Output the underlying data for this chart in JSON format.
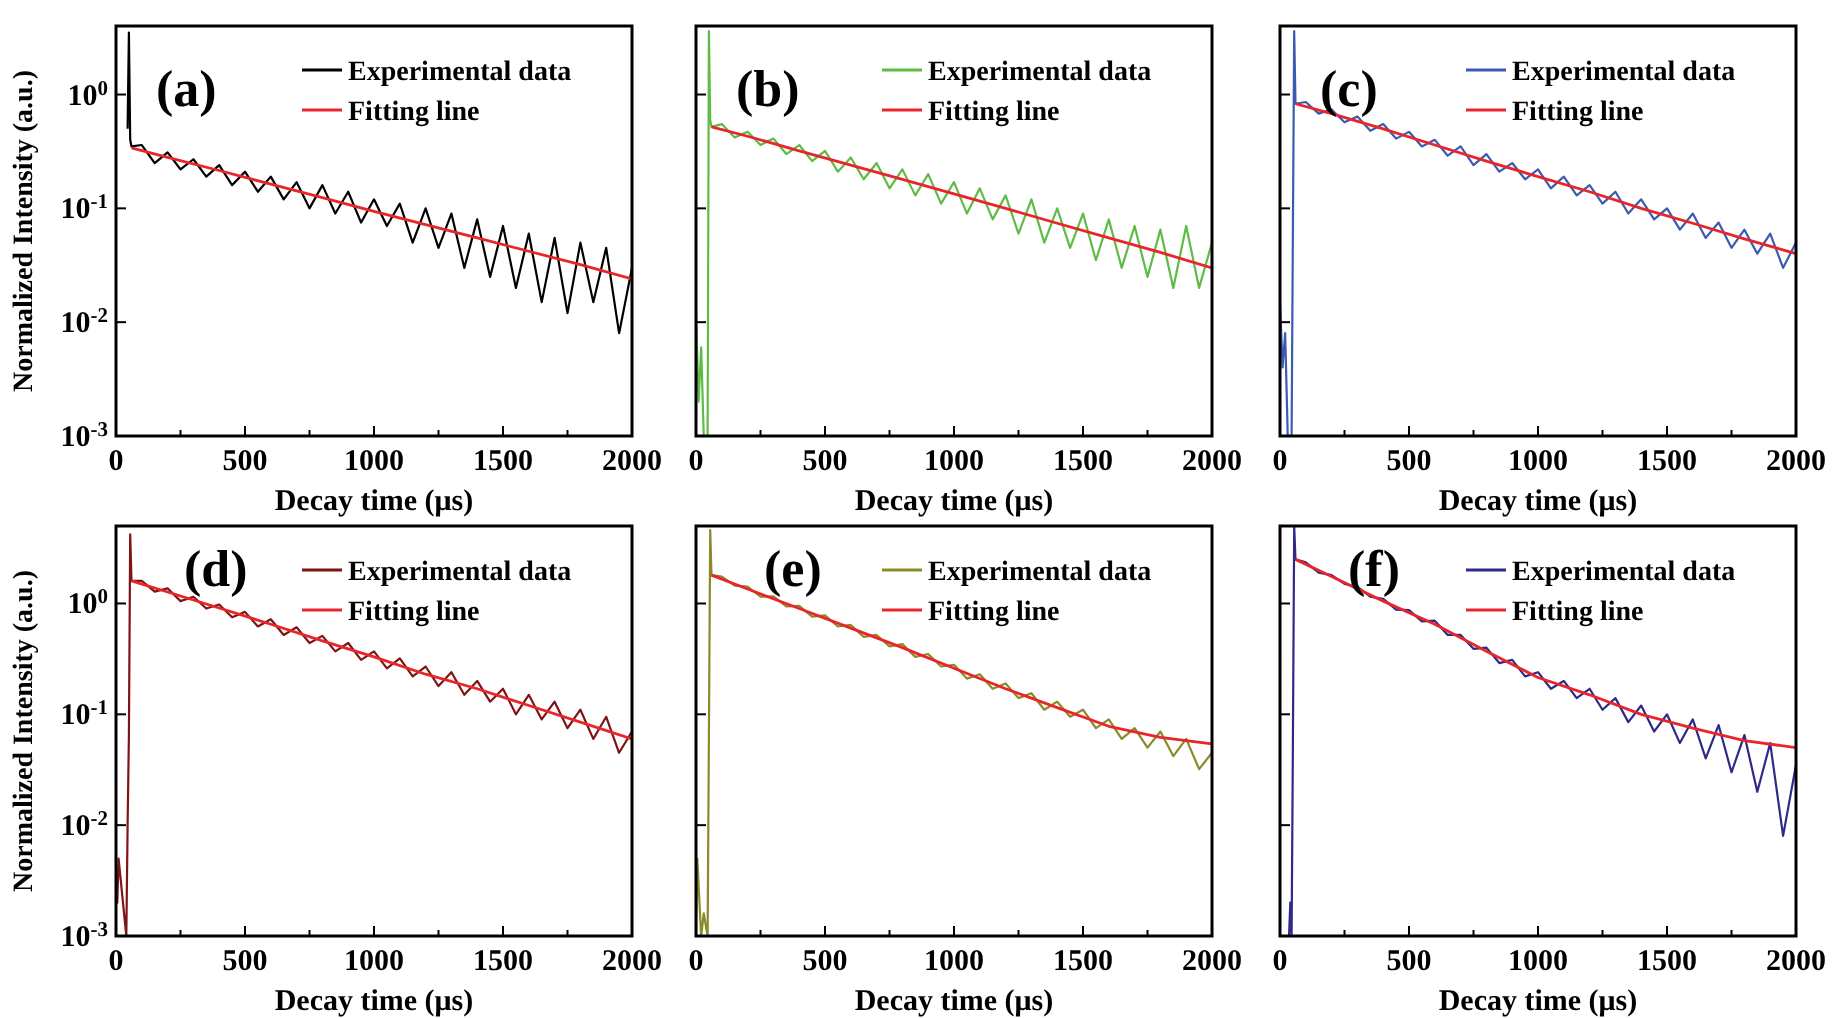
{
  "chart_data": [
    {
      "type": "line",
      "annotations": [
        "(a)"
      ],
      "xlabel": "Decay time (μs)",
      "ylabel": "Normalized Intensity (a.u.)",
      "log": "y",
      "legend": "top right",
      "xlim": [
        0,
        2000
      ],
      "ylim": [
        0.001,
        4
      ],
      "xticks": [
        0,
        {
          "value": 250,
          "label": null
        },
        500,
        {
          "value": 750,
          "label": null
        },
        1000,
        {
          "value": 1250,
          "label": null
        },
        1500,
        {
          "value": 1750,
          "label": null
        },
        2000
      ],
      "yticks": [
        {
          "value": 0.001,
          "label": "10$^{-3}$"
        },
        {
          "value": 0.01,
          "label": "10$^{-2}$"
        },
        {
          "value": 0.1,
          "label": "10$^{-1}$"
        },
        {
          "value": 1,
          "label": "10$^{0}$"
        }
      ],
      "series": [
        {
          "name": "Experimental data",
          "color": "#000000",
          "x": [
            45,
            50,
            55,
            60,
            100,
            150,
            200,
            250,
            300,
            350,
            400,
            450,
            500,
            550,
            600,
            650,
            700,
            750,
            800,
            850,
            900,
            950,
            1000,
            1050,
            1100,
            1150,
            1200,
            1250,
            1300,
            1350,
            1400,
            1450,
            1500,
            1550,
            1600,
            1650,
            1700,
            1750,
            1800,
            1850,
            1900,
            1950,
            2000
          ],
          "values": [
            0.5,
            3.5,
            0.4,
            0.35,
            0.36,
            0.25,
            0.31,
            0.22,
            0.27,
            0.19,
            0.24,
            0.16,
            0.21,
            0.14,
            0.19,
            0.12,
            0.17,
            0.1,
            0.16,
            0.09,
            0.14,
            0.075,
            0.12,
            0.07,
            0.11,
            0.05,
            0.1,
            0.045,
            0.09,
            0.03,
            0.08,
            0.025,
            0.07,
            0.02,
            0.06,
            0.015,
            0.055,
            0.012,
            0.05,
            0.015,
            0.045,
            0.008,
            0.03
          ]
        },
        {
          "name": "Fitting line",
          "color": "#e8262a",
          "x": [
            60,
            200,
            400,
            600,
            800,
            1000,
            1200,
            1400,
            1600,
            1800,
            2000
          ],
          "values": [
            0.34,
            0.28,
            0.215,
            0.163,
            0.124,
            0.094,
            0.072,
            0.055,
            0.042,
            0.032,
            0.024
          ]
        }
      ]
    },
    {
      "type": "line",
      "annotations": [
        "(b)"
      ],
      "xlabel": "Decay time (μs)",
      "log": "y",
      "legend": "top right",
      "tick_labels": "x",
      "xlim": [
        0,
        2000
      ],
      "ylim": [
        0.001,
        4
      ],
      "xticks": [
        0,
        {
          "value": 250,
          "label": null
        },
        500,
        {
          "value": 750,
          "label": null
        },
        1000,
        {
          "value": 1250,
          "label": null
        },
        1500,
        {
          "value": 1750,
          "label": null
        },
        2000
      ],
      "yticks": [
        {
          "value": 0.001,
          "label": null
        },
        {
          "value": 0.01,
          "label": null
        },
        {
          "value": 0.1,
          "label": null
        },
        {
          "value": 1,
          "label": null
        }
      ],
      "series": [
        {
          "name": "Experimental data",
          "color": "#5dbb46",
          "x": [
            0,
            10,
            20,
            30,
            45,
            50,
            55,
            60,
            100,
            150,
            200,
            250,
            300,
            350,
            400,
            450,
            500,
            550,
            600,
            650,
            700,
            750,
            800,
            850,
            900,
            950,
            1000,
            1050,
            1100,
            1150,
            1200,
            1250,
            1300,
            1350,
            1400,
            1450,
            1500,
            1550,
            1600,
            1650,
            1700,
            1750,
            1800,
            1850,
            1900,
            1950,
            2000
          ],
          "values": [
            0.012,
            0.002,
            0.006,
            0.001,
            0.001,
            3.6,
            0.6,
            0.52,
            0.55,
            0.42,
            0.47,
            0.36,
            0.41,
            0.3,
            0.36,
            0.26,
            0.32,
            0.21,
            0.28,
            0.18,
            0.25,
            0.15,
            0.22,
            0.13,
            0.2,
            0.11,
            0.17,
            0.09,
            0.15,
            0.08,
            0.13,
            0.06,
            0.12,
            0.05,
            0.1,
            0.045,
            0.09,
            0.035,
            0.08,
            0.03,
            0.07,
            0.025,
            0.065,
            0.02,
            0.07,
            0.02,
            0.05
          ]
        },
        {
          "name": "Fitting line",
          "color": "#e8262a",
          "x": [
            60,
            200,
            400,
            600,
            800,
            1000,
            1200,
            1400,
            1600,
            1800,
            2000
          ],
          "values": [
            0.52,
            0.43,
            0.32,
            0.24,
            0.18,
            0.134,
            0.1,
            0.074,
            0.055,
            0.041,
            0.03
          ]
        }
      ]
    },
    {
      "type": "line",
      "annotations": [
        "(c)"
      ],
      "xlabel": "Decay time (μs)",
      "log": "y",
      "legend": "top right",
      "tick_labels": "x",
      "xlim": [
        0,
        2000
      ],
      "ylim": [
        0.001,
        4
      ],
      "xticks": [
        0,
        {
          "value": 250,
          "label": null
        },
        500,
        {
          "value": 750,
          "label": null
        },
        1000,
        {
          "value": 1250,
          "label": null
        },
        1500,
        {
          "value": 1750,
          "label": null
        },
        2000
      ],
      "yticks": [
        {
          "value": 0.001,
          "label": null
        },
        {
          "value": 0.01,
          "label": null
        },
        {
          "value": 0.1,
          "label": null
        },
        {
          "value": 1,
          "label": null
        }
      ],
      "series": [
        {
          "name": "Experimental data",
          "color": "#3a5bb0",
          "x": [
            0,
            10,
            20,
            30,
            45,
            50,
            55,
            60,
            100,
            150,
            200,
            250,
            300,
            350,
            400,
            450,
            500,
            550,
            600,
            650,
            700,
            750,
            800,
            850,
            900,
            950,
            1000,
            1050,
            1100,
            1150,
            1200,
            1250,
            1300,
            1350,
            1400,
            1450,
            1500,
            1550,
            1600,
            1650,
            1700,
            1750,
            1800,
            1850,
            1900,
            1950,
            2000
          ],
          "values": [
            0.015,
            0.004,
            0.008,
            0.001,
            0.001,
            0.064,
            3.6,
            0.83,
            0.86,
            0.68,
            0.74,
            0.57,
            0.64,
            0.48,
            0.55,
            0.41,
            0.47,
            0.35,
            0.4,
            0.29,
            0.35,
            0.24,
            0.3,
            0.21,
            0.25,
            0.18,
            0.22,
            0.15,
            0.19,
            0.13,
            0.16,
            0.11,
            0.14,
            0.09,
            0.12,
            0.08,
            0.1,
            0.065,
            0.09,
            0.055,
            0.075,
            0.045,
            0.065,
            0.04,
            0.06,
            0.03,
            0.05
          ]
        },
        {
          "name": "Fitting line",
          "color": "#e8262a",
          "x": [
            60,
            200,
            400,
            600,
            800,
            1000,
            1200,
            1400,
            1600,
            1800,
            2000
          ],
          "values": [
            0.83,
            0.68,
            0.5,
            0.36,
            0.26,
            0.19,
            0.14,
            0.1,
            0.074,
            0.054,
            0.04
          ]
        }
      ]
    },
    {
      "type": "line",
      "annotations": [
        "(d)"
      ],
      "xlabel": "Decay time (μs)",
      "ylabel": "Normalized Intensity (a.u.)",
      "log": "y",
      "legend": "top right",
      "xlim": [
        0,
        2000
      ],
      "ylim": [
        0.001,
        5
      ],
      "xticks": [
        0,
        {
          "value": 250,
          "label": null
        },
        500,
        {
          "value": 750,
          "label": null
        },
        1000,
        {
          "value": 1250,
          "label": null
        },
        1500,
        {
          "value": 1750,
          "label": null
        },
        2000
      ],
      "yticks": [
        {
          "value": 0.001,
          "label": "10$^{-3}$"
        },
        {
          "value": 0.01,
          "label": "10$^{-2}$"
        },
        {
          "value": 0.1,
          "label": "10$^{-1}$"
        },
        {
          "value": 1,
          "label": "10$^{0}$"
        }
      ],
      "series": [
        {
          "name": "Experimental data",
          "color": "#7f1416",
          "x": [
            0,
            5,
            10,
            40,
            45,
            50,
            55,
            60,
            100,
            150,
            200,
            250,
            300,
            350,
            400,
            450,
            500,
            550,
            600,
            650,
            700,
            750,
            800,
            850,
            900,
            950,
            1000,
            1050,
            1100,
            1150,
            1200,
            1250,
            1300,
            1350,
            1400,
            1450,
            1500,
            1550,
            1600,
            1650,
            1700,
            1750,
            1800,
            1850,
            1900,
            1950,
            2000
          ],
          "values": [
            0.004,
            0.002,
            0.005,
            0.001,
            0.01,
            0.064,
            4.2,
            1.6,
            1.6,
            1.28,
            1.37,
            1.05,
            1.15,
            0.9,
            0.98,
            0.75,
            0.84,
            0.62,
            0.72,
            0.52,
            0.61,
            0.44,
            0.51,
            0.37,
            0.44,
            0.31,
            0.37,
            0.26,
            0.32,
            0.22,
            0.27,
            0.18,
            0.24,
            0.15,
            0.2,
            0.13,
            0.17,
            0.1,
            0.15,
            0.09,
            0.13,
            0.075,
            0.11,
            0.06,
            0.095,
            0.045,
            0.07
          ]
        },
        {
          "name": "Fitting line",
          "color": "#e8262a",
          "x": [
            60,
            200,
            400,
            600,
            800,
            1000,
            1200,
            1400,
            1600,
            1800,
            2000
          ],
          "values": [
            1.6,
            1.27,
            0.91,
            0.65,
            0.46,
            0.33,
            0.23,
            0.17,
            0.12,
            0.085,
            0.06
          ]
        }
      ]
    },
    {
      "type": "line",
      "annotations": [
        "(e)"
      ],
      "xlabel": "Decay time (μs)",
      "log": "y",
      "legend": "top right",
      "tick_labels": "x",
      "xlim": [
        0,
        2000
      ],
      "ylim": [
        0.001,
        5
      ],
      "xticks": [
        0,
        {
          "value": 250,
          "label": null
        },
        500,
        {
          "value": 750,
          "label": null
        },
        1000,
        {
          "value": 1250,
          "label": null
        },
        1500,
        {
          "value": 1750,
          "label": null
        },
        2000
      ],
      "yticks": [
        {
          "value": 0.001,
          "label": null
        },
        {
          "value": 0.01,
          "label": null
        },
        {
          "value": 0.1,
          "label": null
        },
        {
          "value": 1,
          "label": null
        }
      ],
      "series": [
        {
          "name": "Experimental data",
          "color": "#8a8a2a",
          "x": [
            0,
            5,
            20,
            30,
            45,
            50,
            55,
            60,
            100,
            150,
            200,
            250,
            300,
            350,
            400,
            450,
            500,
            550,
            600,
            650,
            700,
            750,
            800,
            850,
            900,
            950,
            1000,
            1050,
            1100,
            1150,
            1200,
            1250,
            1300,
            1350,
            1400,
            1450,
            1500,
            1550,
            1600,
            1650,
            1700,
            1750,
            1800,
            1850,
            1900,
            1950,
            2000
          ],
          "values": [
            0.001,
            0.005,
            0.001,
            0.0016,
            0.001,
            0.064,
            4.6,
            1.8,
            1.75,
            1.45,
            1.42,
            1.15,
            1.16,
            0.94,
            0.95,
            0.76,
            0.78,
            0.62,
            0.64,
            0.5,
            0.52,
            0.41,
            0.43,
            0.33,
            0.35,
            0.27,
            0.28,
            0.21,
            0.23,
            0.17,
            0.19,
            0.14,
            0.155,
            0.11,
            0.13,
            0.095,
            0.11,
            0.075,
            0.09,
            0.06,
            0.075,
            0.05,
            0.07,
            0.042,
            0.06,
            0.032,
            0.045
          ]
        },
        {
          "name": "Fitting line",
          "color": "#e8262a",
          "x": [
            60,
            200,
            400,
            600,
            800,
            1000,
            1200,
            1400,
            1600,
            1800,
            2000
          ],
          "values": [
            1.8,
            1.35,
            0.9,
            0.6,
            0.4,
            0.26,
            0.17,
            0.115,
            0.078,
            0.062,
            0.054
          ]
        }
      ]
    },
    {
      "type": "line",
      "annotations": [
        "(f)"
      ],
      "xlabel": "Decay time (μs)",
      "log": "y",
      "legend": "top right",
      "tick_labels": "x",
      "xlim": [
        0,
        2000
      ],
      "ylim": [
        0.001,
        5
      ],
      "xticks": [
        0,
        {
          "value": 250,
          "label": null
        },
        500,
        {
          "value": 750,
          "label": null
        },
        1000,
        {
          "value": 1250,
          "label": null
        },
        1500,
        {
          "value": 1750,
          "label": null
        },
        2000
      ],
      "yticks": [
        {
          "value": 0.001,
          "label": null
        },
        {
          "value": 0.01,
          "label": null
        },
        {
          "value": 0.1,
          "label": null
        },
        {
          "value": 1,
          "label": null
        }
      ],
      "series": [
        {
          "name": "Experimental data",
          "color": "#2e2a86",
          "x": [
            35,
            40,
            45,
            50,
            55,
            60,
            100,
            150,
            200,
            250,
            300,
            350,
            400,
            450,
            500,
            550,
            600,
            650,
            700,
            750,
            800,
            850,
            900,
            950,
            1000,
            1050,
            1100,
            1150,
            1200,
            1250,
            1300,
            1350,
            1400,
            1450,
            1500,
            1550,
            1600,
            1650,
            1700,
            1750,
            1800,
            1850,
            1900,
            1950,
            2000
          ],
          "values": [
            0.001,
            0.002,
            0.001,
            0.055,
            5,
            2.5,
            2.35,
            1.9,
            1.8,
            1.5,
            1.42,
            1.15,
            1.1,
            0.88,
            0.87,
            0.69,
            0.7,
            0.52,
            0.52,
            0.39,
            0.4,
            0.29,
            0.31,
            0.22,
            0.24,
            0.17,
            0.2,
            0.14,
            0.17,
            0.11,
            0.14,
            0.085,
            0.12,
            0.07,
            0.1,
            0.055,
            0.09,
            0.04,
            0.08,
            0.03,
            0.065,
            0.02,
            0.055,
            0.008,
            0.035
          ]
        },
        {
          "name": "Fitting line",
          "color": "#e8262a",
          "x": [
            60,
            200,
            400,
            600,
            800,
            1000,
            1200,
            1400,
            1600,
            1800,
            2000
          ],
          "values": [
            2.5,
            1.75,
            1.05,
            0.65,
            0.37,
            0.215,
            0.15,
            0.1,
            0.075,
            0.058,
            0.05
          ]
        }
      ]
    }
  ]
}
